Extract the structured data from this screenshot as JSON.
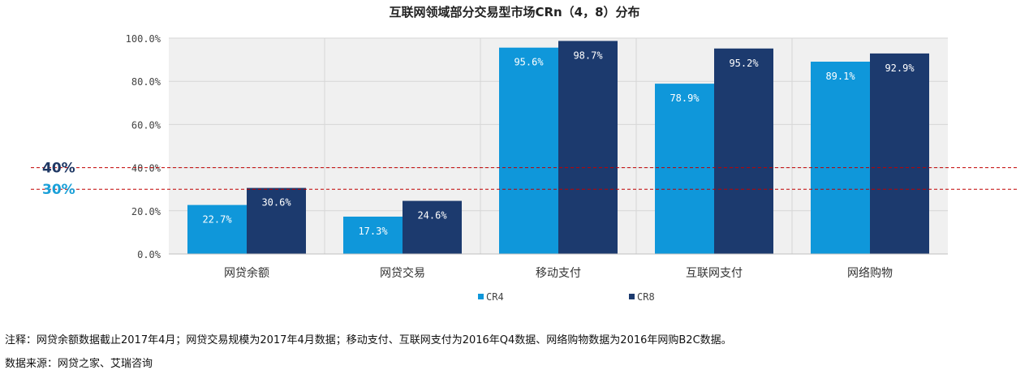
{
  "chart_data": {
    "type": "bar",
    "title": "互联网领域部分交易型市场CRn（4，8）分布",
    "categories": [
      "网贷余额",
      "网贷交易",
      "移动支付",
      "互联网支付",
      "网络购物"
    ],
    "series": [
      {
        "name": "CR4",
        "values": [
          22.7,
          17.3,
          95.6,
          78.9,
          89.1
        ],
        "labels": [
          "22.7%",
          "17.3%",
          "95.6%",
          "78.9%",
          "89.1%"
        ]
      },
      {
        "name": "CR8",
        "values": [
          30.6,
          24.6,
          98.7,
          95.2,
          92.9
        ],
        "labels": [
          "30.6%",
          "24.6%",
          "98.7%",
          "95.2%",
          "92.9%"
        ]
      }
    ],
    "ylim": [
      0,
      100
    ],
    "yticks": [
      0,
      20,
      40,
      60,
      80,
      100
    ],
    "ytick_labels": [
      "0.0%",
      "20.0%",
      "40.0%",
      "60.0%",
      "80.0%",
      "100.0%"
    ],
    "reference_lines": [
      {
        "value": 40,
        "label": "40%",
        "color": "#1f3864"
      },
      {
        "value": 30,
        "label": "30%",
        "color": "#1aa0d8"
      }
    ],
    "grid": true,
    "legend": "bottom-center",
    "colors": {
      "CR4": "#0f97da",
      "CR8": "#1c3a6e",
      "reference": "#c00000",
      "plot_bg": "#f0f0f0"
    }
  },
  "notes": {
    "note": "注释：网贷余额数据截止2017年4月；网贷交易规模为2017年4月数据；移动支付、互联网支付为2016年Q4数据、网络购物数据为2016年网购B2C数据。",
    "source": "数据来源：网贷之家、艾瑞咨询"
  }
}
